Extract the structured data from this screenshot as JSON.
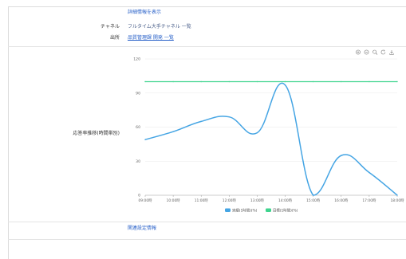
{
  "header": {
    "detail_link": "詳細情報を表示"
  },
  "rows": {
    "channel": {
      "label": "チャネル",
      "value": "フルタイム大手チャネル 一覧"
    },
    "source": {
      "label": "出所",
      "value": "品質管理課 開発 一覧"
    }
  },
  "chart_row": {
    "label": "応答率推移(時間帯別)"
  },
  "footer": {
    "settings_link": "関連設定情報"
  },
  "toolbox": {
    "icons": [
      "zoom-in-icon",
      "zoom-out-icon",
      "magnify-icon",
      "restore-icon",
      "save-image-icon"
    ]
  },
  "colors": {
    "actual": "#45a5e4",
    "target": "#3fd48e",
    "grid": "#e8e8e8",
    "axis": "#9a9a9a",
    "link": "#2a62c9"
  },
  "chart_data": {
    "type": "line",
    "x": [
      "09:00時",
      "10:00時",
      "11:00時",
      "12:00時",
      "13:00時",
      "14:00時",
      "15:00時",
      "16:00時",
      "17:00時",
      "18:00時"
    ],
    "series": [
      {
        "name": "実績(1時間)(%)",
        "smooth": true,
        "values": [
          49,
          56,
          65,
          69,
          55,
          97,
          0,
          35,
          20,
          0
        ]
      },
      {
        "name": "目標(1時間)(%)",
        "smooth": false,
        "values": [
          100,
          100,
          100,
          100,
          100,
          100,
          100,
          100,
          100,
          100
        ]
      }
    ],
    "yticks": [
      0,
      30,
      60,
      90,
      120
    ],
    "ylim": [
      0,
      120
    ],
    "title": "",
    "xlabel": "",
    "ylabel": "",
    "grid": true,
    "legend": "bottom-center"
  }
}
